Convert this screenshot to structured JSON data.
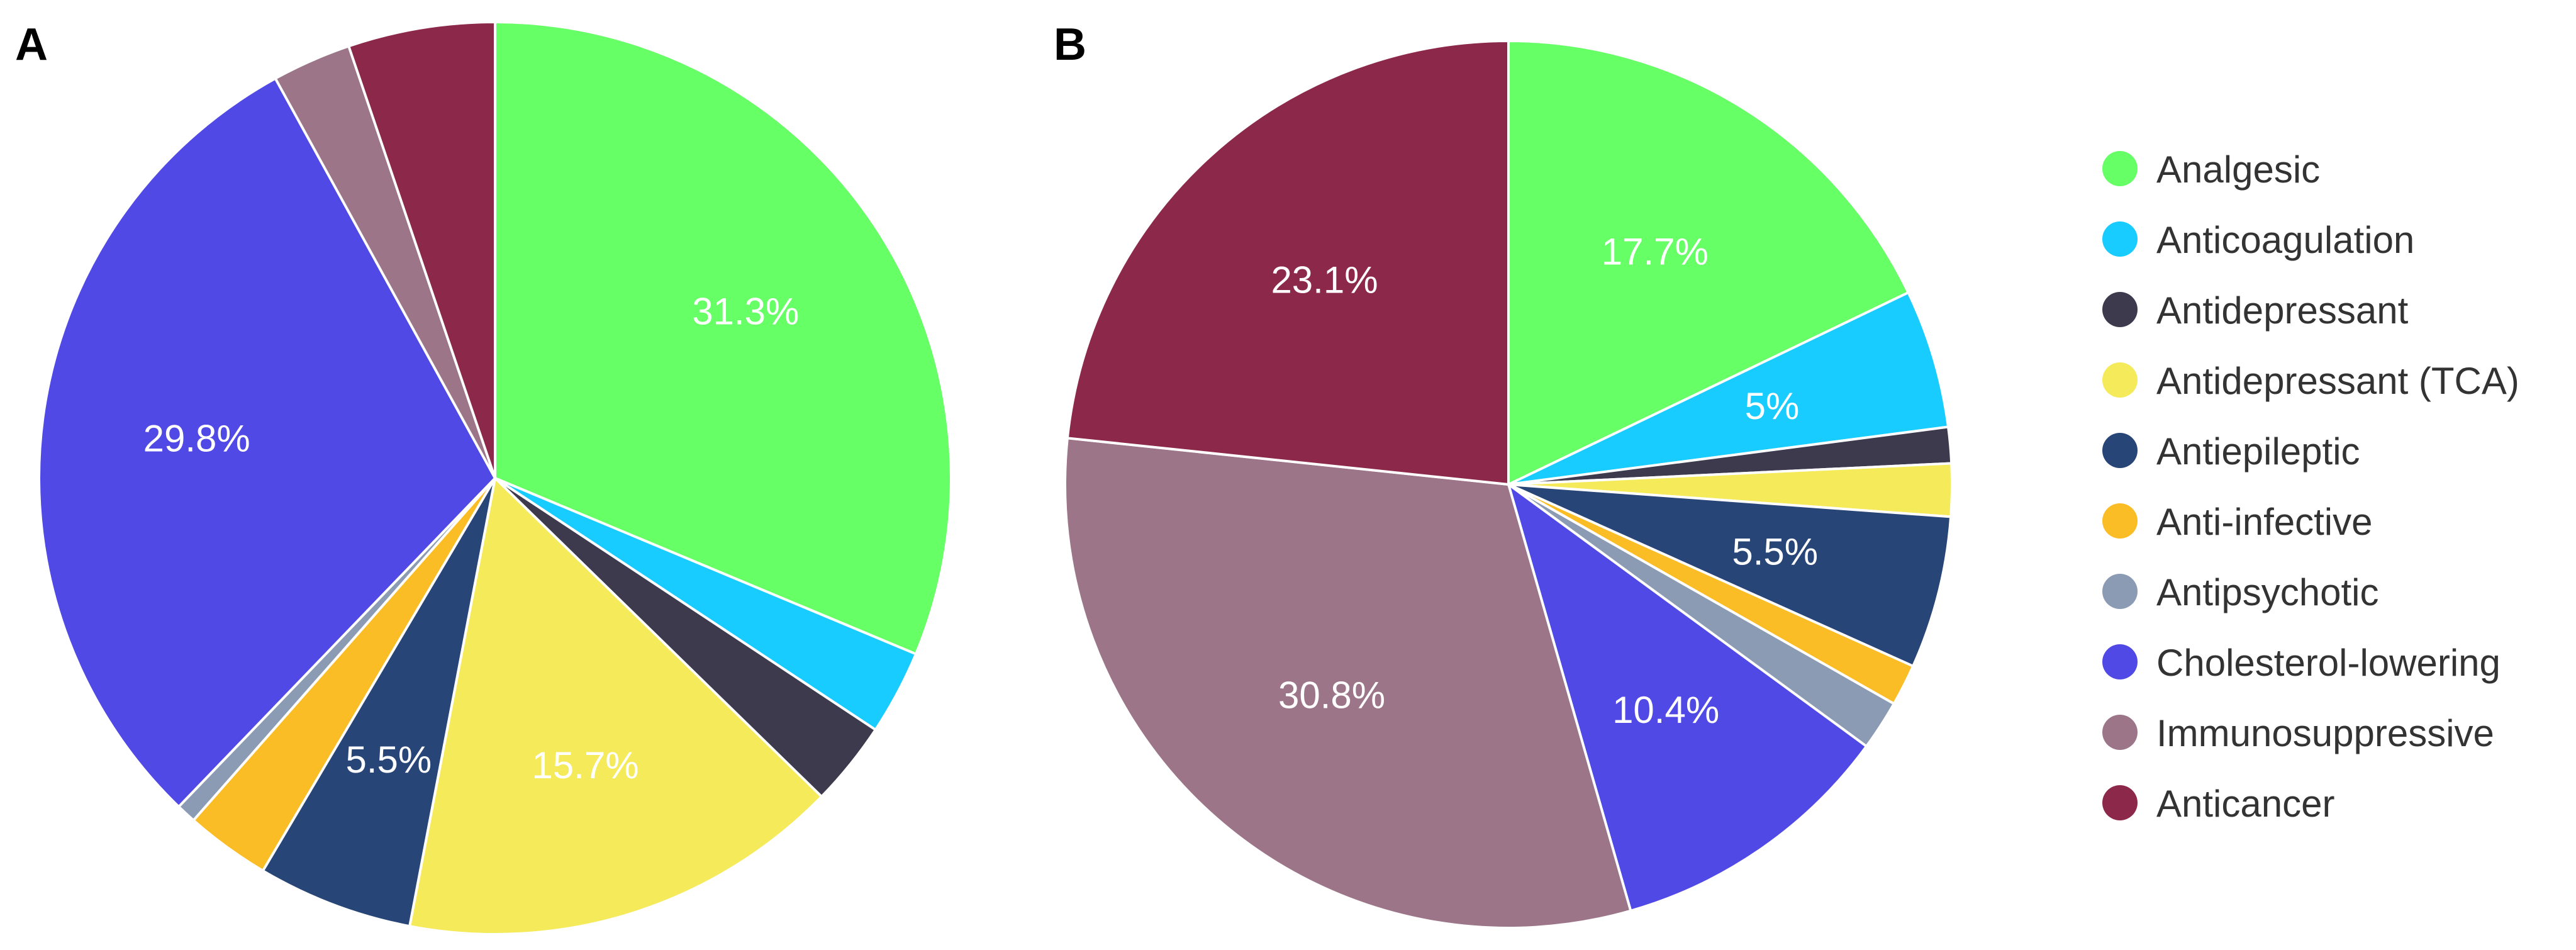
{
  "chart_data": [
    {
      "type": "pie",
      "panel": "A",
      "title": "",
      "slices": [
        {
          "category": "Analgesic",
          "value": 31.3,
          "label": "31.3%"
        },
        {
          "category": "Anticoagulation",
          "value": 3.0,
          "label": ""
        },
        {
          "category": "Antidepressant",
          "value": 3.0,
          "label": ""
        },
        {
          "category": "Antidepressant (TCA)",
          "value": 15.7,
          "label": "15.7%"
        },
        {
          "category": "Antiepileptic",
          "value": 5.5,
          "label": "5.5%"
        },
        {
          "category": "Anti-infective",
          "value": 3.0,
          "label": ""
        },
        {
          "category": "Antipsychotic",
          "value": 0.7,
          "label": ""
        },
        {
          "category": "Cholesterol-lowering",
          "value": 29.8,
          "label": "29.8%"
        },
        {
          "category": "Immunosuppressive",
          "value": 2.8,
          "label": ""
        },
        {
          "category": "Anticancer",
          "value": 5.2,
          "label": ""
        }
      ]
    },
    {
      "type": "pie",
      "panel": "B",
      "title": "",
      "slices": [
        {
          "category": "Analgesic",
          "value": 17.7,
          "label": "17.7%"
        },
        {
          "category": "Anticoagulation",
          "value": 5,
          "label": "5%"
        },
        {
          "category": "Antidepressant",
          "value": 1.3,
          "label": ""
        },
        {
          "category": "Antidepressant (TCA)",
          "value": 1.9,
          "label": ""
        },
        {
          "category": "Antiepileptic",
          "value": 5.5,
          "label": "5.5%"
        },
        {
          "category": "Anti-infective",
          "value": 1.5,
          "label": ""
        },
        {
          "category": "Antipsychotic",
          "value": 1.8,
          "label": ""
        },
        {
          "category": "Cholesterol-lowering",
          "value": 10.4,
          "label": "10.4%"
        },
        {
          "category": "Immunosuppressive",
          "value": 30.8,
          "label": "30.8%"
        },
        {
          "category": "Anticancer",
          "value": 23.1,
          "label": "23.1%"
        }
      ]
    }
  ],
  "legend": {
    "position": "right",
    "items": [
      {
        "label": "Analgesic",
        "color": "#66ff66"
      },
      {
        "label": "Anticoagulation",
        "color": "#18ccff"
      },
      {
        "label": "Antidepressant",
        "color": "#3d3a4e"
      },
      {
        "label": "Antidepressant (TCA)",
        "color": "#f5ea5a"
      },
      {
        "label": "Antiepileptic",
        "color": "#284577"
      },
      {
        "label": "Anti-infective",
        "color": "#fbbd25"
      },
      {
        "label": "Antipsychotic",
        "color": "#8a9bb3"
      },
      {
        "label": "Cholesterol-lowering",
        "color": "#5049e6"
      },
      {
        "label": "Immunosuppressive",
        "color": "#9c7589"
      },
      {
        "label": "Anticancer",
        "color": "#8c294a"
      }
    ]
  }
}
